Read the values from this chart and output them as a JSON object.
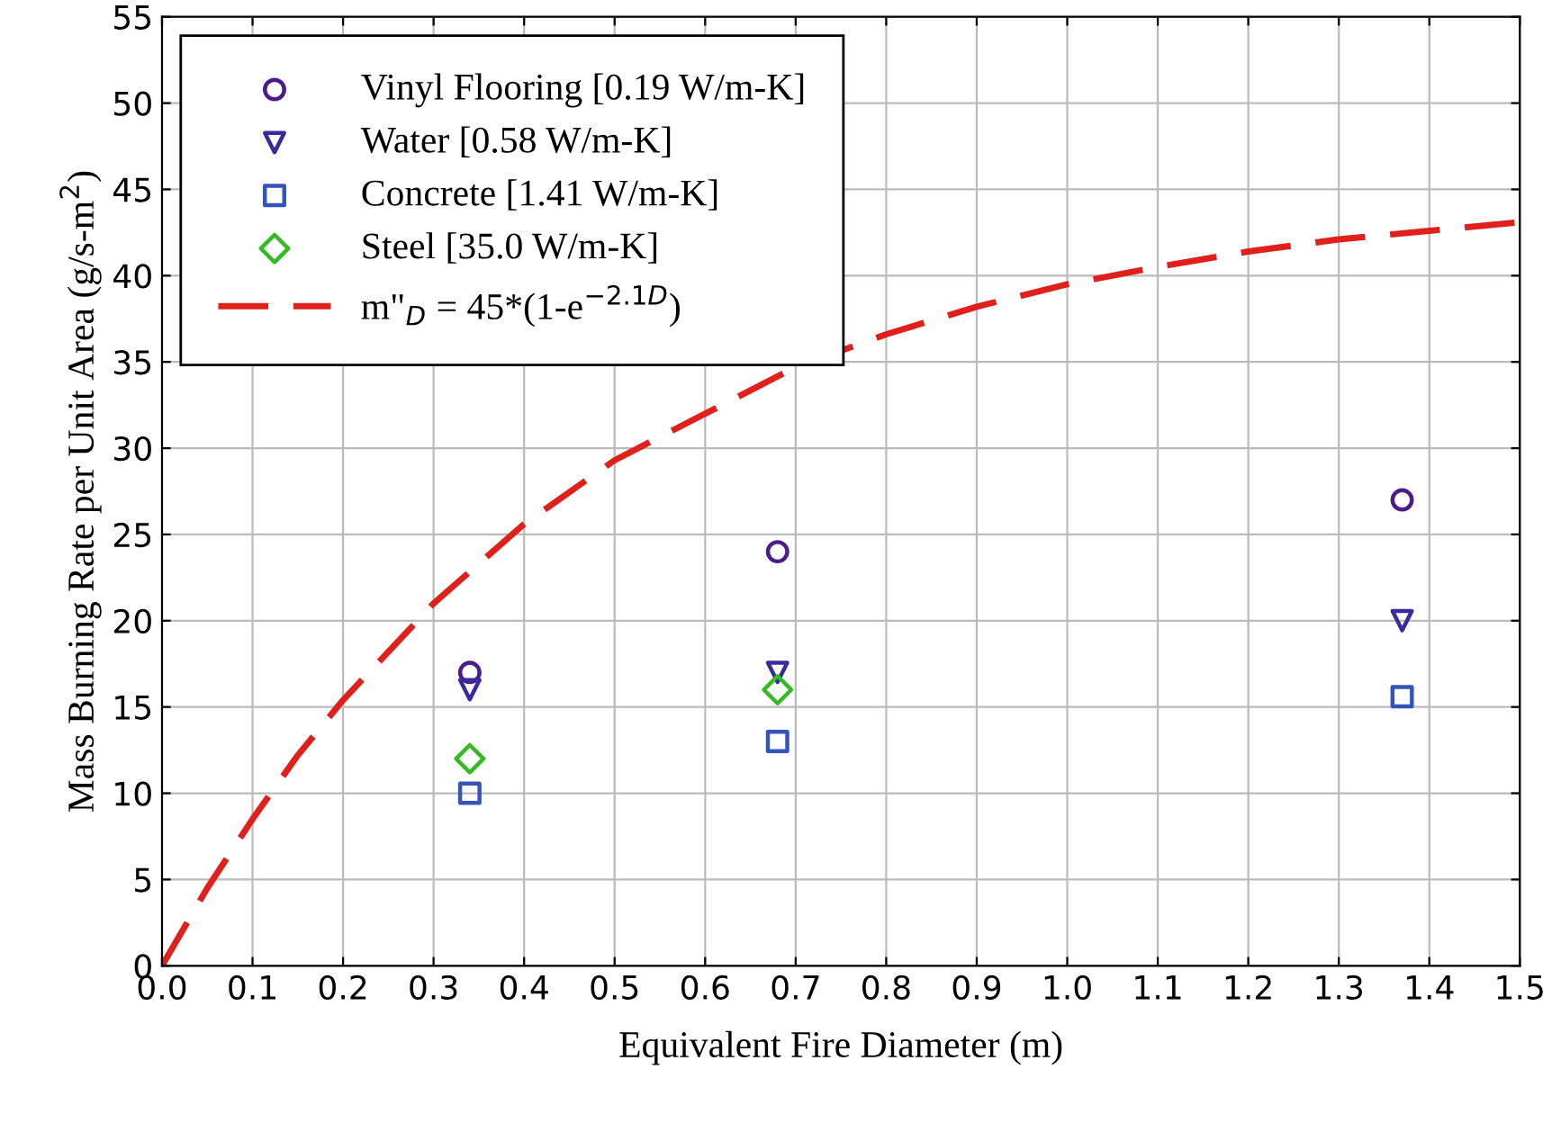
{
  "chart_data": {
    "type": "scatter",
    "xlabel": "Equivalent Fire Diameter (m)",
    "ylabel": "Mass Burning Rate per Unit Area (g/s-m$^{2}$)",
    "xlim": [
      0,
      1.5
    ],
    "xticks": [
      {
        "value": 0,
        "label": "0.0"
      },
      0.1,
      0.2,
      0.3,
      0.4,
      0.5,
      0.6,
      0.7,
      0.8,
      0.9,
      {
        "value": 1,
        "label": "1.0"
      },
      1.1,
      1.2,
      1.3,
      1.4,
      1.5
    ],
    "ylim": [
      0,
      55
    ],
    "yticks": [
      0,
      5,
      10,
      15,
      20,
      25,
      30,
      35,
      40,
      45,
      50,
      55
    ],
    "grid": true,
    "legend": "top left",
    "series": [
      {
        "name": "Vinyl Flooring [0.19 W/m-K]",
        "color": "#4b1c8c",
        "marker": "circle",
        "x": [
          0.34,
          0.68,
          1.37
        ],
        "values": [
          17,
          24,
          27
        ]
      },
      {
        "name": "Water [0.58 W/m-K]",
        "color": "#3a2a9c",
        "marker": "triangle",
        "x": [
          0.34,
          0.68,
          1.37
        ],
        "values": [
          16,
          17,
          20
        ]
      },
      {
        "name": "Concrete [1.41 W/m-K]",
        "color": "#3355bb",
        "marker": "square",
        "x": [
          0.34,
          0.68,
          1.37
        ],
        "values": [
          10,
          13,
          15.6
        ]
      },
      {
        "name": "Steel [35.0 W/m-K]",
        "color": "#33bb22",
        "marker": "diamond",
        "x": [
          0.34,
          0.68
        ],
        "values": [
          12,
          16
        ]
      },
      {
        "name": "m\"$_{D}$ = 45*(1-e$^{−2.1D}$)",
        "type": "line",
        "color": "#e0201b",
        "marker": "none",
        "line_style": "dashed",
        "x": [
          0,
          0.05,
          0.1,
          0.15,
          0.2,
          0.3,
          0.4,
          0.5,
          0.7,
          0.8,
          0.9,
          1.0,
          1.1,
          1.2,
          1.3,
          1.4,
          1.5
        ],
        "values": [
          0,
          4.5,
          8.5,
          12.2,
          15.4,
          21.0,
          25.6,
          29.3,
          34.7,
          36.6,
          38.2,
          39.5,
          40.5,
          41.4,
          42.1,
          42.6,
          43.1
        ]
      }
    ]
  }
}
